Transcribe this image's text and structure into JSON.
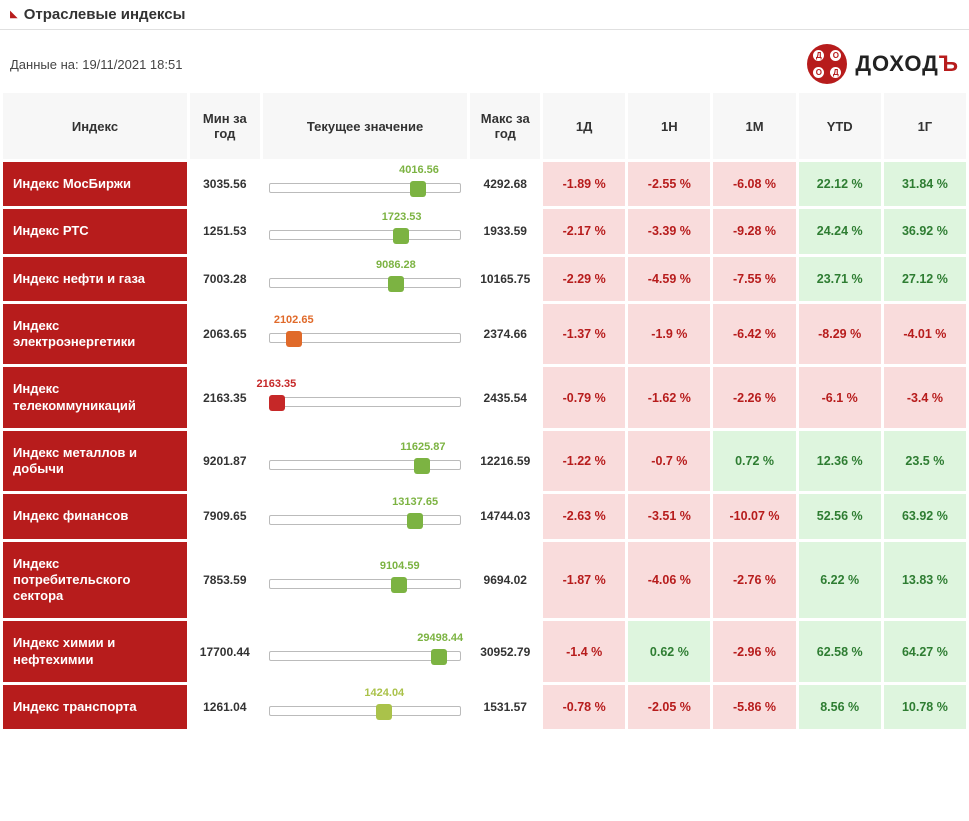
{
  "page_title": "Отраслевые индексы",
  "timestamp_label": "Данные на: 19/11/2021 18:51",
  "brand": {
    "text": "ДОХОД",
    "apostrophe": "Ъ"
  },
  "colors": {
    "header_red": "#b71c1c",
    "neg_bg": "#f9dcdc",
    "neg_text": "#b71c1c",
    "pos_bg": "#def5de",
    "pos_text": "#2e7d32"
  },
  "marker_colors": {
    "green": "#7cb342",
    "orange": "#e06a2a",
    "red": "#c62828",
    "lime": "#aac24a"
  },
  "headers": {
    "index": "Индекс",
    "min": "Мин за год",
    "current": "Текущее значение",
    "max": "Макс за год",
    "d1": "1Д",
    "w1": "1Н",
    "m1": "1М",
    "ytd": "YTD",
    "y1": "1Г"
  },
  "rows": [
    {
      "name": "Индекс МосБиржи",
      "min": "3035.56",
      "cur": "4016.56",
      "max": "4292.68",
      "pos_pct": 78,
      "marker": "green",
      "chg": [
        {
          "v": "-1.89 %",
          "d": "neg"
        },
        {
          "v": "-2.55 %",
          "d": "neg"
        },
        {
          "v": "-6.08 %",
          "d": "neg"
        },
        {
          "v": "22.12 %",
          "d": "pos"
        },
        {
          "v": "31.84 %",
          "d": "pos"
        }
      ]
    },
    {
      "name": "Индекс РТС",
      "min": "1251.53",
      "cur": "1723.53",
      "max": "1933.59",
      "pos_pct": 69,
      "marker": "green",
      "chg": [
        {
          "v": "-2.17 %",
          "d": "neg"
        },
        {
          "v": "-3.39 %",
          "d": "neg"
        },
        {
          "v": "-9.28 %",
          "d": "neg"
        },
        {
          "v": "24.24 %",
          "d": "pos"
        },
        {
          "v": "36.92 %",
          "d": "pos"
        }
      ]
    },
    {
      "name": "Индекс нефти и газа",
      "min": "7003.28",
      "cur": "9086.28",
      "max": "10165.75",
      "pos_pct": 66,
      "marker": "green",
      "chg": [
        {
          "v": "-2.29 %",
          "d": "neg"
        },
        {
          "v": "-4.59 %",
          "d": "neg"
        },
        {
          "v": "-7.55 %",
          "d": "neg"
        },
        {
          "v": "23.71 %",
          "d": "pos"
        },
        {
          "v": "27.12 %",
          "d": "pos"
        }
      ]
    },
    {
      "name": "Индекс электроэнергетики",
      "min": "2063.65",
      "cur": "2102.65",
      "max": "2374.66",
      "pos_pct": 13,
      "marker": "orange",
      "chg": [
        {
          "v": "-1.37 %",
          "d": "neg"
        },
        {
          "v": "-1.9 %",
          "d": "neg"
        },
        {
          "v": "-6.42 %",
          "d": "neg"
        },
        {
          "v": "-8.29 %",
          "d": "neg"
        },
        {
          "v": "-4.01 %",
          "d": "neg"
        }
      ]
    },
    {
      "name": "Индекс телекоммуникаций",
      "min": "2163.35",
      "cur": "2163.35",
      "max": "2435.54",
      "pos_pct": 4,
      "marker": "red",
      "chg": [
        {
          "v": "-0.79 %",
          "d": "neg"
        },
        {
          "v": "-1.62 %",
          "d": "neg"
        },
        {
          "v": "-2.26 %",
          "d": "neg"
        },
        {
          "v": "-6.1 %",
          "d": "neg"
        },
        {
          "v": "-3.4 %",
          "d": "neg"
        }
      ]
    },
    {
      "name": "Индекс металлов и добычи",
      "min": "9201.87",
      "cur": "11625.87",
      "max": "12216.59",
      "pos_pct": 80,
      "marker": "green",
      "chg": [
        {
          "v": "-1.22 %",
          "d": "neg"
        },
        {
          "v": "-0.7 %",
          "d": "neg"
        },
        {
          "v": "0.72 %",
          "d": "pos"
        },
        {
          "v": "12.36 %",
          "d": "pos"
        },
        {
          "v": "23.5 %",
          "d": "pos"
        }
      ]
    },
    {
      "name": "Индекс финансов",
      "min": "7909.65",
      "cur": "13137.65",
      "max": "14744.03",
      "pos_pct": 76,
      "marker": "green",
      "chg": [
        {
          "v": "-2.63 %",
          "d": "neg"
        },
        {
          "v": "-3.51 %",
          "d": "neg"
        },
        {
          "v": "-10.07 %",
          "d": "neg"
        },
        {
          "v": "52.56 %",
          "d": "pos"
        },
        {
          "v": "63.92 %",
          "d": "pos"
        }
      ]
    },
    {
      "name": "Индекс потребительского сектора",
      "min": "7853.59",
      "cur": "9104.59",
      "max": "9694.02",
      "pos_pct": 68,
      "marker": "green",
      "chg": [
        {
          "v": "-1.87 %",
          "d": "neg"
        },
        {
          "v": "-4.06 %",
          "d": "neg"
        },
        {
          "v": "-2.76 %",
          "d": "neg"
        },
        {
          "v": "6.22 %",
          "d": "pos"
        },
        {
          "v": "13.83 %",
          "d": "pos"
        }
      ]
    },
    {
      "name": "Индекс химии и нефтехимии",
      "min": "17700.44",
      "cur": "29498.44",
      "max": "30952.79",
      "pos_pct": 89,
      "marker": "green",
      "chg": [
        {
          "v": "-1.4 %",
          "d": "neg"
        },
        {
          "v": "0.62 %",
          "d": "pos"
        },
        {
          "v": "-2.96 %",
          "d": "neg"
        },
        {
          "v": "62.58 %",
          "d": "pos"
        },
        {
          "v": "64.27 %",
          "d": "pos"
        }
      ]
    },
    {
      "name": "Индекс транспорта",
      "min": "1261.04",
      "cur": "1424.04",
      "max": "1531.57",
      "pos_pct": 60,
      "marker": "lime",
      "chg": [
        {
          "v": "-0.78 %",
          "d": "neg"
        },
        {
          "v": "-2.05 %",
          "d": "neg"
        },
        {
          "v": "-5.86 %",
          "d": "neg"
        },
        {
          "v": "8.56 %",
          "d": "pos"
        },
        {
          "v": "10.78 %",
          "d": "pos"
        }
      ]
    }
  ]
}
